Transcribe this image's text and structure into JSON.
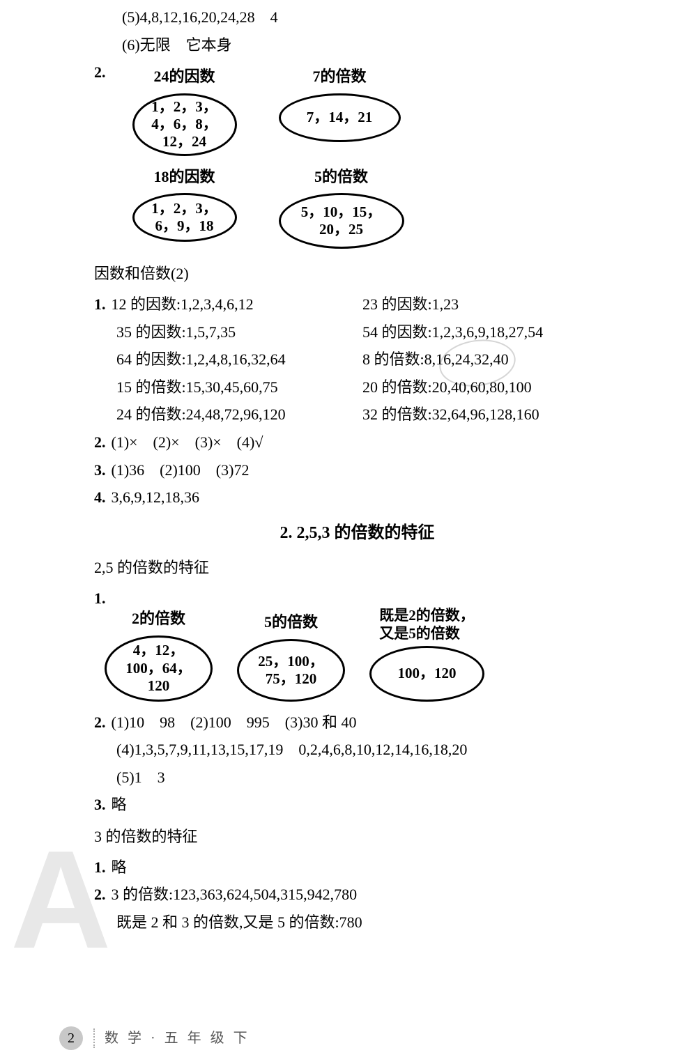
{
  "top": {
    "line5": "(5)4,8,12,16,20,24,28　4",
    "line6": "(6)无限　它本身"
  },
  "q2": {
    "label": "2.",
    "ovals1": [
      {
        "title": "24的因数",
        "content": "1，2，3，\n4，6，8，\n12，24",
        "cls": "oval-24"
      },
      {
        "title": "7的倍数",
        "content": "7，14，21",
        "cls": "oval-7"
      }
    ],
    "ovals2": [
      {
        "title": "18的因数",
        "content": "1，2，3，\n6，9，18",
        "cls": "oval-18"
      },
      {
        "title": "5的倍数",
        "content": "5，10，15，\n20，25",
        "cls": "oval-5"
      }
    ]
  },
  "subsec1": "因数和倍数(2)",
  "fac_q1": {
    "label": "1.",
    "rows": [
      {
        "l": "12 的因数:1,2,3,4,6,12",
        "r": "23 的因数:1,23"
      },
      {
        "l": "35 的因数:1,5,7,35",
        "r": "54 的因数:1,2,3,6,9,18,27,54"
      },
      {
        "l": "64 的因数:1,2,4,8,16,32,64",
        "r": "8 的倍数:8,16,24,32,40"
      },
      {
        "l": "15 的倍数:15,30,45,60,75",
        "r": "20 的倍数:20,40,60,80,100"
      },
      {
        "l": "24 的倍数:24,48,72,96,120",
        "r": "32 的倍数:32,64,96,128,160"
      }
    ]
  },
  "fac_q2": {
    "label": "2.",
    "text": "(1)×　(2)×　(3)×　(4)√"
  },
  "fac_q3": {
    "label": "3.",
    "text": "(1)36　(2)100　(3)72"
  },
  "fac_q4": {
    "label": "4.",
    "text": "3,6,9,12,18,36"
  },
  "sec2_title": "2. 2,5,3 的倍数的特征",
  "subsec2": "2,5 的倍数的特征",
  "mul_q1": {
    "label": "1.",
    "ovals": [
      {
        "title": "2的倍数",
        "content": "4，12，\n100，64，\n120",
        "cls": "oval-2m",
        "multi": false
      },
      {
        "title": "5的倍数",
        "content": "25，100，\n75，120",
        "cls": "oval-5m",
        "multi": false
      },
      {
        "title": "既是2的倍数，\n又是5的倍数",
        "content": "100，120",
        "cls": "oval-25",
        "multi": true
      }
    ]
  },
  "mul_q2": {
    "label": "2.",
    "line1": "(1)10　98　(2)100　995　(3)30 和 40",
    "line2": "(4)1,3,5,7,9,11,13,15,17,19　0,2,4,6,8,10,12,14,16,18,20",
    "line3": "(5)1　3"
  },
  "mul_q3": {
    "label": "3.",
    "text": "略"
  },
  "subsec3": "3 的倍数的特征",
  "t3_q1": {
    "label": "1.",
    "text": "略"
  },
  "t3_q2": {
    "label": "2.",
    "line1": "3 的倍数:123,363,624,504,315,942,780",
    "line2": "既是 2 和 3 的倍数,又是 5 的倍数:780"
  },
  "footer": {
    "page": "2",
    "text": "数 学 · 五 年 级 下"
  },
  "colors": {
    "text": "#000000",
    "bg": "#ffffff",
    "watermark": "#e8e8e8"
  }
}
